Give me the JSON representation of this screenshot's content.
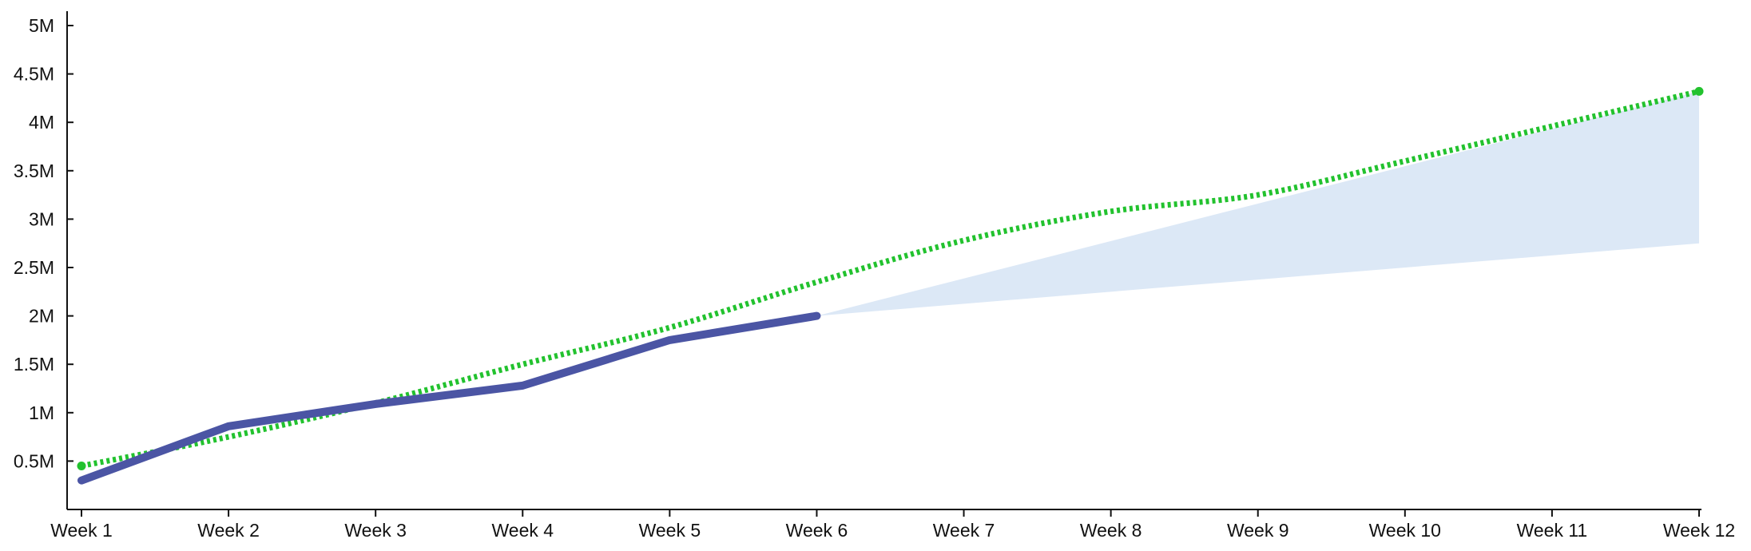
{
  "chart_data": {
    "type": "line",
    "title": "",
    "xlabel": "",
    "ylabel": "",
    "categories": [
      "Week 1",
      "Week 2",
      "Week 3",
      "Week 4",
      "Week 5",
      "Week 6",
      "Week 7",
      "Week 8",
      "Week 9",
      "Week 10",
      "Week 11",
      "Week 12"
    ],
    "ylim": [
      0,
      5000000
    ],
    "yticks": [
      500000,
      1000000,
      1500000,
      2000000,
      2500000,
      3000000,
      3500000,
      4000000,
      4500000,
      5000000
    ],
    "ytick_labels": [
      "0.5M",
      "1M",
      "1.5M",
      "2M",
      "2.5M",
      "3M",
      "3.5M",
      "4M",
      "4.5M",
      "5M"
    ],
    "grid": false,
    "series": [
      {
        "style": "dotted",
        "color": "#22c22e",
        "values": [
          450000,
          750000,
          1100000,
          1500000,
          1880000,
          2350000,
          2780000,
          3080000,
          3250000,
          3600000,
          3960000,
          4320000
        ]
      },
      {
        "style": "solid",
        "color": "#4b55a4",
        "values": [
          300000,
          860000,
          1090000,
          1280000,
          1750000,
          2000000,
          null,
          null,
          null,
          null,
          null,
          null
        ]
      }
    ],
    "projection_band": {
      "color": "#dce8f6",
      "start_category": "Week 6",
      "start_value": 2000000,
      "end_category": "Week 12",
      "end_low": 2750000,
      "end_high": 4320000
    }
  }
}
